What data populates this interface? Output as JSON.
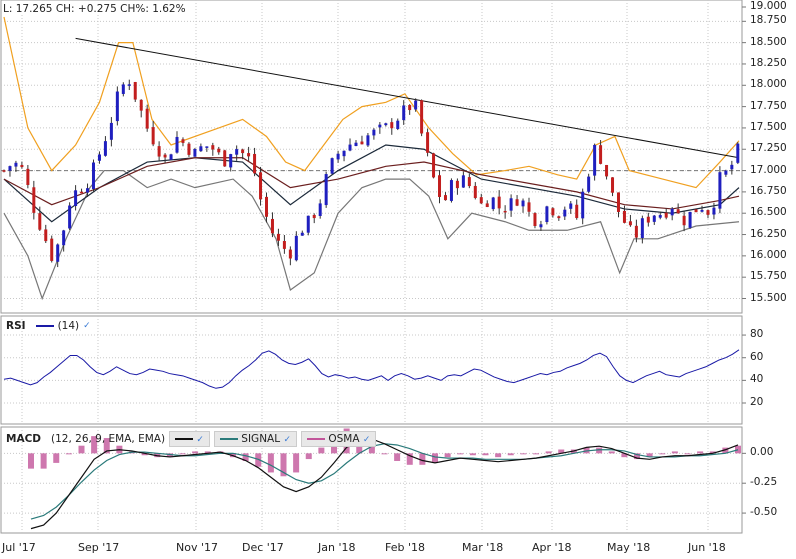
{
  "quote": {
    "low_label": "L: 17.265",
    "change_label": "CH: +0.275",
    "change_pct_label": "CH%: 1.62%"
  },
  "rsi_legend": {
    "name": "RSI",
    "period_label": "(14)",
    "color": "#1a1aa6"
  },
  "macd_legend": {
    "name": "MACD",
    "params_label": "(12, 26, 9, EMA, EMA)",
    "signal_label": "SIGNAL",
    "osma_label": "OSMA",
    "macd_color": "#111111",
    "signal_color": "#2a7a7a",
    "osma_color": "#c2559a"
  },
  "colors": {
    "up_candle": "#1f1fbf",
    "down_candle": "#c21e1e",
    "upper_band": "#f0a020",
    "lower_band": "#777777",
    "trendline": "#111111",
    "grid": "#c8c8c8"
  },
  "chart_data": [
    {
      "type": "candlestick",
      "title": "",
      "x_ticks": [
        "Jul '17",
        "Sep '17",
        "Nov '17",
        "Dec '17",
        "Jan '18",
        "Feb '18",
        "Mar '18",
        "Apr '18",
        "May '18",
        "Jun '18"
      ],
      "y_ticks": [
        "19.000",
        "18.750",
        "18.500",
        "18.250",
        "18.000",
        "17.750",
        "17.500",
        "17.250",
        "17.000",
        "16.750",
        "16.500",
        "16.250",
        "16.000",
        "15.750",
        "15.500"
      ],
      "ylim": [
        15.33,
        19.0
      ],
      "reference_level": 17.0,
      "last_close": 17.265,
      "close_path": [
        [
          0,
          17.0
        ],
        [
          4,
          17.1
        ],
        [
          8,
          17.0
        ],
        [
          12,
          16.6
        ],
        [
          16,
          16.3
        ],
        [
          20,
          16.0
        ],
        [
          24,
          16.2
        ],
        [
          28,
          16.7
        ],
        [
          32,
          16.8
        ],
        [
          36,
          16.9
        ],
        [
          40,
          17.2
        ],
        [
          44,
          17.5
        ],
        [
          48,
          17.9
        ],
        [
          52,
          18.1
        ],
        [
          56,
          17.8
        ],
        [
          60,
          17.5
        ],
        [
          64,
          17.3
        ],
        [
          68,
          17.1
        ],
        [
          72,
          17.4
        ],
        [
          76,
          17.3
        ],
        [
          80,
          17.2
        ],
        [
          84,
          17.3
        ],
        [
          88,
          17.25
        ],
        [
          92,
          17.1
        ],
        [
          96,
          17.3
        ],
        [
          100,
          17.2
        ],
        [
          104,
          17.1
        ],
        [
          108,
          16.6
        ],
        [
          112,
          16.3
        ],
        [
          116,
          16.1
        ],
        [
          120,
          16.05
        ],
        [
          124,
          16.3
        ],
        [
          128,
          16.4
        ],
        [
          132,
          16.6
        ],
        [
          136,
          17.0
        ],
        [
          140,
          17.2
        ],
        [
          144,
          17.3
        ],
        [
          148,
          17.35
        ],
        [
          152,
          17.4
        ],
        [
          156,
          17.45
        ],
        [
          160,
          17.5
        ],
        [
          164,
          17.6
        ],
        [
          168,
          17.7
        ],
        [
          172,
          17.8
        ],
        [
          176,
          17.3
        ],
        [
          180,
          16.9
        ],
        [
          184,
          16.6
        ],
        [
          188,
          16.85
        ],
        [
          192,
          16.9
        ],
        [
          196,
          16.8
        ],
        [
          200,
          16.6
        ],
        [
          204,
          16.7
        ],
        [
          208,
          16.55
        ],
        [
          212,
          16.6
        ],
        [
          216,
          16.7
        ],
        [
          220,
          16.5
        ],
        [
          224,
          16.4
        ],
        [
          228,
          16.6
        ],
        [
          232,
          16.5
        ],
        [
          236,
          16.6
        ],
        [
          240,
          16.45
        ],
        [
          244,
          16.9
        ],
        [
          248,
          17.3
        ],
        [
          252,
          17.0
        ],
        [
          256,
          16.6
        ],
        [
          260,
          16.4
        ],
        [
          264,
          16.2
        ],
        [
          268,
          16.4
        ],
        [
          272,
          16.5
        ],
        [
          276,
          16.5
        ],
        [
          280,
          16.6
        ],
        [
          284,
          16.4
        ],
        [
          288,
          16.5
        ],
        [
          292,
          16.6
        ],
        [
          296,
          16.5
        ],
        [
          300,
          16.9
        ],
        [
          304,
          17.0
        ],
        [
          308,
          17.265
        ]
      ],
      "moving_average_paths": [
        [
          [
            0,
            16.9
          ],
          [
            20,
            16.4
          ],
          [
            40,
            16.8
          ],
          [
            60,
            17.1
          ],
          [
            80,
            17.15
          ],
          [
            100,
            17.1
          ],
          [
            120,
            16.6
          ],
          [
            140,
            17.0
          ],
          [
            160,
            17.3
          ],
          [
            176,
            17.25
          ],
          [
            200,
            16.9
          ],
          [
            240,
            16.7
          ],
          [
            260,
            16.55
          ],
          [
            280,
            16.5
          ],
          [
            300,
            16.6
          ],
          [
            308,
            16.8
          ]
        ],
        [
          [
            0,
            16.9
          ],
          [
            20,
            16.6
          ],
          [
            40,
            16.8
          ],
          [
            60,
            17.05
          ],
          [
            80,
            17.15
          ],
          [
            100,
            17.15
          ],
          [
            120,
            16.8
          ],
          [
            140,
            16.9
          ],
          [
            160,
            17.05
          ],
          [
            176,
            17.1
          ],
          [
            200,
            16.95
          ],
          [
            240,
            16.75
          ],
          [
            260,
            16.6
          ],
          [
            280,
            16.55
          ],
          [
            300,
            16.65
          ],
          [
            308,
            16.7
          ]
        ]
      ],
      "upper_band_path": [
        [
          0,
          18.8
        ],
        [
          10,
          17.5
        ],
        [
          20,
          17.0
        ],
        [
          30,
          17.3
        ],
        [
          40,
          17.8
        ],
        [
          48,
          18.5
        ],
        [
          54,
          18.5
        ],
        [
          62,
          17.6
        ],
        [
          70,
          17.3
        ],
        [
          90,
          17.5
        ],
        [
          100,
          17.6
        ],
        [
          110,
          17.4
        ],
        [
          118,
          17.1
        ],
        [
          126,
          17.0
        ],
        [
          134,
          17.3
        ],
        [
          142,
          17.6
        ],
        [
          150,
          17.75
        ],
        [
          160,
          17.8
        ],
        [
          168,
          17.9
        ],
        [
          178,
          17.5
        ],
        [
          188,
          17.2
        ],
        [
          198,
          16.95
        ],
        [
          210,
          17.0
        ],
        [
          220,
          17.05
        ],
        [
          232,
          16.95
        ],
        [
          240,
          16.9
        ],
        [
          248,
          17.3
        ],
        [
          256,
          17.4
        ],
        [
          262,
          17.0
        ],
        [
          276,
          16.9
        ],
        [
          290,
          16.8
        ],
        [
          300,
          17.1
        ],
        [
          308,
          17.35
        ]
      ],
      "lower_band_path": [
        [
          0,
          16.5
        ],
        [
          10,
          16.0
        ],
        [
          16,
          15.5
        ],
        [
          26,
          16.2
        ],
        [
          36,
          16.8
        ],
        [
          42,
          17.0
        ],
        [
          50,
          17.0
        ],
        [
          60,
          16.8
        ],
        [
          70,
          16.9
        ],
        [
          80,
          16.8
        ],
        [
          96,
          16.9
        ],
        [
          104,
          16.7
        ],
        [
          114,
          16.2
        ],
        [
          120,
          15.6
        ],
        [
          130,
          15.8
        ],
        [
          140,
          16.5
        ],
        [
          150,
          16.8
        ],
        [
          160,
          16.9
        ],
        [
          170,
          16.9
        ],
        [
          178,
          16.7
        ],
        [
          186,
          16.2
        ],
        [
          196,
          16.5
        ],
        [
          210,
          16.4
        ],
        [
          220,
          16.3
        ],
        [
          236,
          16.3
        ],
        [
          250,
          16.4
        ],
        [
          258,
          15.8
        ],
        [
          264,
          16.2
        ],
        [
          274,
          16.2
        ],
        [
          290,
          16.35
        ],
        [
          308,
          16.4
        ]
      ],
      "trendline": [
        [
          30,
          18.55
        ],
        [
          308,
          17.15
        ]
      ]
    },
    {
      "type": "line",
      "title": "RSI",
      "y_ticks": [
        "80",
        "60",
        "40",
        "20"
      ],
      "ylim": [
        5,
        88
      ],
      "series": [
        {
          "name": "RSI (14)",
          "values": [
            41,
            42,
            40,
            38,
            36,
            38,
            43,
            47,
            52,
            57,
            62,
            62,
            58,
            52,
            47,
            45,
            48,
            52,
            49,
            46,
            45,
            47,
            50,
            49,
            48,
            46,
            45,
            44,
            42,
            40,
            38,
            35,
            33,
            34,
            38,
            44,
            49,
            53,
            58,
            64,
            66,
            63,
            58,
            55,
            54,
            56,
            59,
            53,
            46,
            43,
            45,
            44,
            42,
            43,
            41,
            40,
            42,
            44,
            40,
            44,
            46,
            44,
            41,
            42,
            44,
            42,
            40,
            44,
            45,
            44,
            47,
            50,
            49,
            46,
            43,
            41,
            39,
            38,
            40,
            42,
            44,
            46,
            45,
            47,
            48,
            51,
            53,
            55,
            58,
            62,
            64,
            61,
            52,
            44,
            40,
            38,
            41,
            44,
            46,
            48,
            45,
            44,
            43,
            46,
            48,
            50,
            52,
            55,
            58,
            60,
            63,
            67
          ]
        }
      ]
    },
    {
      "type": "line",
      "title": "MACD",
      "y_ticks": [
        "0.00",
        "-0.25",
        "-0.50"
      ],
      "ylim": [
        -0.65,
        0.12
      ],
      "series": [
        {
          "name": "MACD",
          "values": [
            -0.63,
            -0.6,
            -0.5,
            -0.35,
            -0.2,
            -0.05,
            0.02,
            0.03,
            0.02,
            0.0,
            -0.02,
            -0.03,
            -0.02,
            -0.01,
            0.0,
            0.01,
            -0.02,
            -0.06,
            -0.12,
            -0.2,
            -0.28,
            -0.32,
            -0.28,
            -0.2,
            -0.08,
            0.05,
            0.1,
            0.12,
            0.08,
            0.03,
            -0.02,
            -0.06,
            -0.08,
            -0.06,
            -0.04,
            -0.05,
            -0.06,
            -0.07,
            -0.06,
            -0.05,
            -0.04,
            -0.02,
            0.0,
            0.02,
            0.05,
            0.06,
            0.04,
            0.0,
            -0.04,
            -0.05,
            -0.03,
            -0.02,
            -0.02,
            -0.01,
            0.0,
            0.03,
            0.07
          ]
        },
        {
          "name": "SIGNAL",
          "values": [
            -0.55,
            -0.52,
            -0.45,
            -0.35,
            -0.24,
            -0.14,
            -0.06,
            -0.01,
            0.01,
            0.01,
            0.0,
            -0.01,
            -0.02,
            -0.02,
            -0.01,
            0.0,
            0.0,
            -0.02,
            -0.05,
            -0.1,
            -0.16,
            -0.22,
            -0.25,
            -0.23,
            -0.17,
            -0.08,
            0.0,
            0.06,
            0.08,
            0.07,
            0.04,
            0.0,
            -0.03,
            -0.04,
            -0.04,
            -0.04,
            -0.05,
            -0.05,
            -0.05,
            -0.05,
            -0.04,
            -0.03,
            -0.02,
            0.0,
            0.02,
            0.03,
            0.03,
            0.02,
            -0.01,
            -0.03,
            -0.03,
            -0.03,
            -0.02,
            -0.02,
            -0.01,
            0.0,
            0.03
          ]
        }
      ]
    }
  ]
}
